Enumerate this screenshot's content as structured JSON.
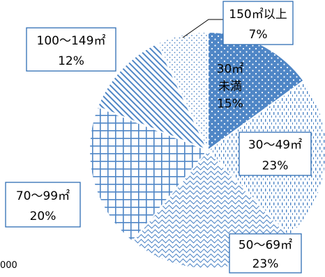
{
  "chart_data": {
    "type": "pie",
    "title": "",
    "slices": [
      {
        "label": [
          "30㎡",
          "未満"
        ],
        "percent_label": "15%",
        "value": 15,
        "pattern": "dots"
      },
      {
        "label": [
          "30〜49㎡"
        ],
        "percent_label": "23%",
        "value": 23,
        "pattern": "dashed-vertical"
      },
      {
        "label": [
          "50〜69㎡"
        ],
        "percent_label": "23%",
        "value": 23,
        "pattern": "waves"
      },
      {
        "label": [
          "70〜99㎡"
        ],
        "percent_label": "20%",
        "value": 20,
        "pattern": "grid"
      },
      {
        "label": [
          "100〜149㎡"
        ],
        "percent_label": "12%",
        "value": 12,
        "pattern": "diagonal"
      },
      {
        "label": [
          "150㎡以上"
        ],
        "percent_label": "7%",
        "value": 7,
        "pattern": "light-dots"
      }
    ],
    "colors": {
      "pattern": "#4f86c6",
      "border": "#2e6db4",
      "slice_edge": "#ffffff"
    },
    "start_angle": "12 o'clock",
    "direction": "clockwise",
    "legend": "none"
  },
  "footnote": "000"
}
